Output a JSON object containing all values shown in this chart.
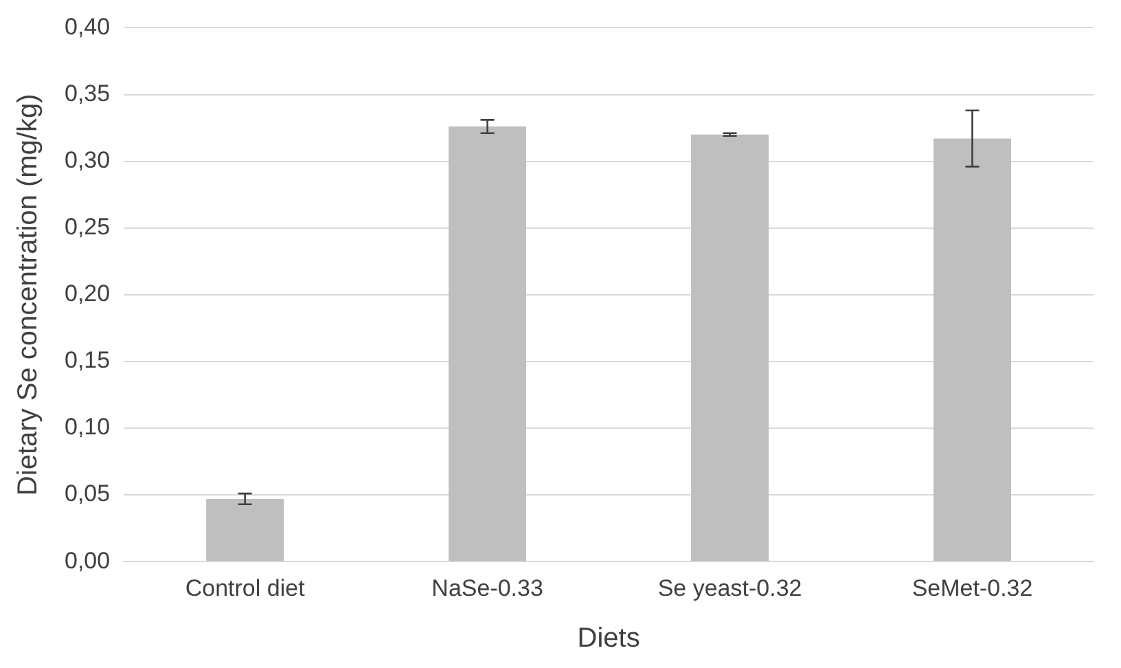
{
  "chart_data": {
    "type": "bar",
    "xlabel": "Diets",
    "ylabel": "Dietary Se concentration (mg/kg)",
    "categories": [
      "Control diet",
      "NaSe-0.33",
      "Se yeast-0.32",
      "SeMet-0.32"
    ],
    "values": [
      0.047,
      0.326,
      0.32,
      0.317
    ],
    "errors": [
      0.004,
      0.005,
      0.001,
      0.021
    ],
    "color": "#bfbfbf",
    "ylim": [
      0,
      0.4
    ],
    "yticks": [
      {
        "value": 0,
        "label": "0,00"
      },
      {
        "value": 0.05,
        "label": "0,05"
      },
      {
        "value": 0.1,
        "label": "0,10"
      },
      {
        "value": 0.15,
        "label": "0,15"
      },
      {
        "value": 0.2,
        "label": "0,20"
      },
      {
        "value": 0.25,
        "label": "0,25"
      },
      {
        "value": 0.3,
        "label": "0,30"
      },
      {
        "value": 0.35,
        "label": "0,35"
      },
      {
        "value": 0.4,
        "label": "0,40"
      }
    ],
    "grid": "y",
    "legend": false
  }
}
